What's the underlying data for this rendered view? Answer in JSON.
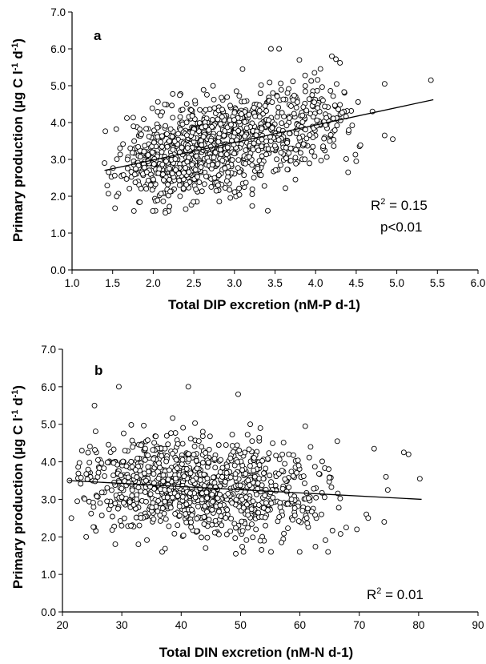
{
  "chart_data": [
    {
      "type": "scatter",
      "panel_label": "a",
      "xlabel": "Total DIP excretion (nM-P d-1)",
      "ylabel": {
        "main": "Primary production (µg C l",
        "sup1": "-1",
        "mid": " d",
        "sup2": "-1",
        "end": ")"
      },
      "xlim": [
        1.0,
        6.0
      ],
      "ylim": [
        0.0,
        7.0
      ],
      "xticks": [
        "1.0",
        "1.5",
        "2.0",
        "2.5",
        "3.0",
        "3.5",
        "4.0",
        "4.5",
        "5.0",
        "5.5",
        "6.0"
      ],
      "yticks": [
        "0.0",
        "1.0",
        "2.0",
        "3.0",
        "4.0",
        "5.0",
        "6.0",
        "7.0"
      ],
      "grid": false,
      "annotations": {
        "r2_prefix": "R",
        "r2_sup": "2",
        "r2_value": " = 0.15",
        "p_value": "p<0.01"
      },
      "trendline": {
        "x": [
          1.4,
          5.45
        ],
        "y": [
          2.7,
          4.62
        ]
      },
      "highlight_points": [
        {
          "x": 5.42,
          "y": 5.15
        },
        {
          "x": 4.85,
          "y": 5.05
        },
        {
          "x": 4.7,
          "y": 4.3
        },
        {
          "x": 4.85,
          "y": 3.65
        },
        {
          "x": 4.95,
          "y": 3.55
        },
        {
          "x": 4.5,
          "y": 2.95
        },
        {
          "x": 4.4,
          "y": 2.65
        },
        {
          "x": 3.45,
          "y": 6.0
        },
        {
          "x": 3.55,
          "y": 6.0
        },
        {
          "x": 3.1,
          "y": 5.45
        },
        {
          "x": 4.2,
          "y": 5.8
        },
        {
          "x": 4.25,
          "y": 5.72
        },
        {
          "x": 4.3,
          "y": 5.62
        },
        {
          "x": 3.8,
          "y": 5.7
        },
        {
          "x": 1.4,
          "y": 2.9
        },
        {
          "x": 1.45,
          "y": 2.65
        },
        {
          "x": 1.55,
          "y": 2.0
        },
        {
          "x": 2.15,
          "y": 1.55
        },
        {
          "x": 2.2,
          "y": 1.72
        },
        {
          "x": 2.4,
          "y": 1.65
        }
      ],
      "cloud": {
        "n": 1100,
        "seed": 11,
        "x_min": 1.4,
        "x_max": 4.7,
        "x_mode": 2.5,
        "y_sd": 0.62,
        "y_min": 1.6,
        "y_max": 5.9
      }
    },
    {
      "type": "scatter",
      "panel_label": "b",
      "xlabel": "Total DIN excretion (nM-N d-1)",
      "ylabel": {
        "main": "Primary production (µg C l",
        "sup1": "-1",
        "mid": " d",
        "sup2": "-1",
        "end": ")"
      },
      "xlim": [
        20,
        90
      ],
      "ylim": [
        0.0,
        7.0
      ],
      "xticks": [
        "20",
        "30",
        "40",
        "50",
        "60",
        "70",
        "80",
        "90"
      ],
      "yticks": [
        "0.0",
        "1.0",
        "2.0",
        "3.0",
        "4.0",
        "5.0",
        "6.0",
        "7.0"
      ],
      "grid": false,
      "annotations": {
        "r2_prefix": "R",
        "r2_sup": "2",
        "r2_value": " = 0.01"
      },
      "trendline": {
        "x": [
          21,
          80.5
        ],
        "y": [
          3.5,
          3.0
        ]
      },
      "highlight_points": [
        {
          "x": 80.2,
          "y": 3.55
        },
        {
          "x": 77.5,
          "y": 4.25
        },
        {
          "x": 78.3,
          "y": 4.2
        },
        {
          "x": 74.5,
          "y": 3.6
        },
        {
          "x": 74.8,
          "y": 3.25
        },
        {
          "x": 74.2,
          "y": 2.4
        },
        {
          "x": 71.2,
          "y": 2.6
        },
        {
          "x": 71.5,
          "y": 2.5
        },
        {
          "x": 72.5,
          "y": 4.35
        },
        {
          "x": 67.8,
          "y": 2.25
        },
        {
          "x": 69.6,
          "y": 2.2
        },
        {
          "x": 29.5,
          "y": 6.0
        },
        {
          "x": 41.2,
          "y": 6.0
        },
        {
          "x": 49.6,
          "y": 5.8
        },
        {
          "x": 25.4,
          "y": 5.5
        },
        {
          "x": 21.2,
          "y": 3.5
        },
        {
          "x": 21.5,
          "y": 2.5
        },
        {
          "x": 22.5,
          "y": 2.95
        },
        {
          "x": 49.2,
          "y": 1.55
        },
        {
          "x": 50.5,
          "y": 1.6
        },
        {
          "x": 24.0,
          "y": 2.0
        },
        {
          "x": 66.3,
          "y": 4.55
        },
        {
          "x": 60.9,
          "y": 4.95
        }
      ],
      "cloud": {
        "n": 1050,
        "seed": 29,
        "x_min": 21,
        "x_max": 68,
        "x_mode": 40,
        "y_sd": 0.62,
        "y_min": 1.6,
        "y_max": 5.7
      }
    }
  ]
}
